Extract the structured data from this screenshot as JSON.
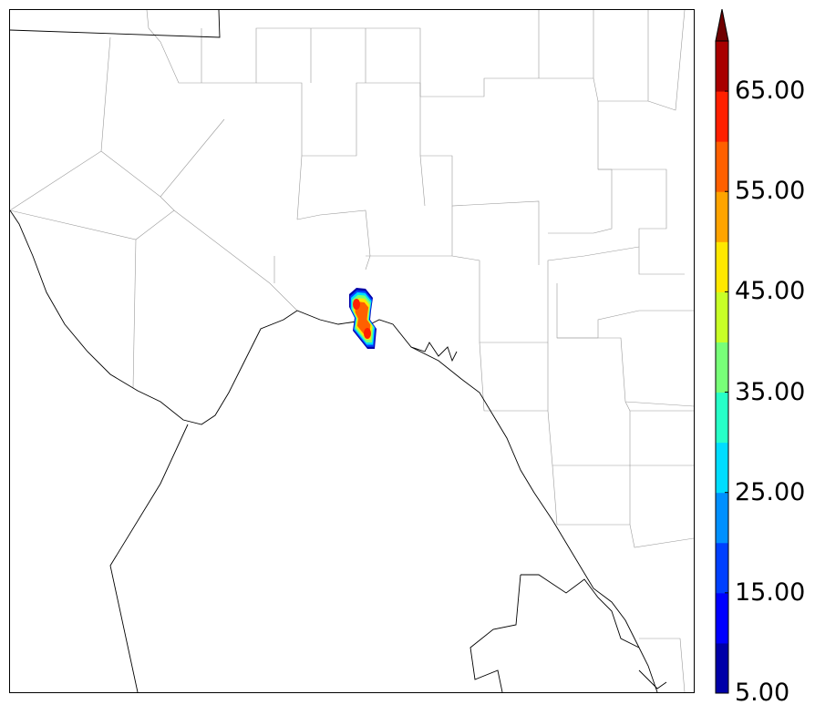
{
  "map": {
    "description_free": true,
    "colorbar": {
      "min": 5,
      "max": 70,
      "step": 5,
      "extend": "max",
      "tick_labels": [
        "5.00",
        "15.00",
        "25.00",
        "35.00",
        "45.00",
        "55.00",
        "65.00"
      ],
      "colors": [
        "#0000a8",
        "#0000ff",
        "#0040ff",
        "#0090ff",
        "#00ddff",
        "#27ffc8",
        "#78ff78",
        "#c8ff27",
        "#ffe800",
        "#ffa400",
        "#ff6000",
        "#ff2000",
        "#a80000",
        "#700000"
      ]
    },
    "field": {
      "name": "reflectivity-style contour blob",
      "peak": 65
    }
  }
}
